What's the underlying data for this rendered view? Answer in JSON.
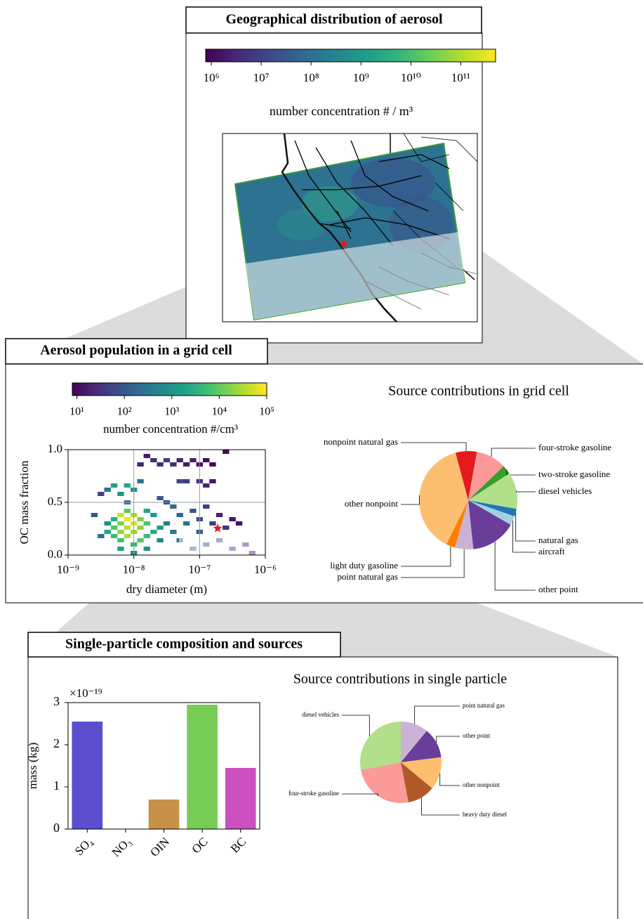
{
  "chart_data": [
    {
      "type": "map",
      "panel": "Geographical distribution of aerosol",
      "colorbar_label": "number concentration # / m³",
      "log": true,
      "clim": [
        770000,
        500000000000
      ],
      "cticks": [
        {
          "value": 1000000,
          "label": "10⁶"
        },
        {
          "value": 10000000,
          "label": "10⁷"
        },
        {
          "value": 100000000,
          "label": "10⁸"
        },
        {
          "value": 1000000000,
          "label": "10⁹"
        },
        {
          "value": 10000000000,
          "label": "10¹⁰"
        },
        {
          "value": 100000000000,
          "label": "10¹¹"
        }
      ]
    },
    {
      "type": "hist2d",
      "panel": "Aerosol population in a grid cell",
      "xlabel": "dry diameter (m)",
      "ylabel": "OC mass fraction",
      "xlog": true,
      "xlim": [
        1e-09,
        1e-06
      ],
      "xticks": [
        {
          "value": 1e-09,
          "label": "10⁻⁹"
        },
        {
          "value": 1e-08,
          "label": "10⁻⁸"
        },
        {
          "value": 1e-07,
          "label": "10⁻⁷"
        },
        {
          "value": 1e-06,
          "label": "10⁻⁶"
        }
      ],
      "ylim": [
        0,
        1
      ],
      "yticks": [
        {
          "value": 0,
          "label": "0.0"
        },
        {
          "value": 0.5,
          "label": "0.5"
        },
        {
          "value": 1,
          "label": "1.0"
        }
      ],
      "grid": true,
      "colorbar_label": "number concentration #/cm³",
      "clim": [
        8,
        100000
      ],
      "cticks": [
        {
          "value": 10,
          "label": "10¹"
        },
        {
          "value": 100,
          "label": "10²"
        },
        {
          "value": 1000,
          "label": "10³"
        },
        {
          "value": 10000,
          "label": "10⁴"
        },
        {
          "value": 100000,
          "label": "10⁵"
        }
      ],
      "x": [
        3.98e-09,
        3.98e-09,
        5.01e-09,
        5.01e-09,
        5.01e-09,
        6.31e-09,
        6.31e-09,
        6.31e-09,
        6.31e-09,
        7.94e-09,
        7.94e-09,
        7.94e-09,
        7.94e-09,
        1e-08,
        1e-08,
        1e-08,
        1e-08,
        1.26e-08,
        1.26e-08,
        1.26e-08,
        1.58e-08,
        1.58e-08,
        1.58e-08,
        2e-08,
        2e-08,
        2.51e-08,
        2.51e-08,
        3.16e-08,
        6.31e-09,
        1e-08,
        1.58e-08,
        3.98e-09,
        5.01e-09,
        6.31e-09,
        7.94e-09,
        1e-08,
        1.26e-08,
        7.94e-09,
        2.51e-09,
        3.16e-09,
        3.16e-09,
        1.26e-08,
        1.58e-08,
        2e-08,
        2.51e-08,
        3.16e-08,
        3.98e-08,
        5.01e-08,
        6.31e-08,
        7.94e-08,
        1e-07,
        1.26e-07,
        1.58e-07,
        2.51e-07,
        5.01e-08,
        6.31e-08,
        1e-07,
        1.26e-07,
        1.58e-07,
        3.98e-08,
        5.01e-08,
        6.31e-08,
        7.94e-08,
        1e-07,
        1e-07,
        1.26e-07,
        1.58e-07,
        2e-07,
        2.51e-07,
        3.16e-07,
        3.98e-07,
        1.26e-07,
        2e-07,
        3.16e-07,
        5.01e-07,
        6.31e-07,
        5.01e-08,
        7.94e-08,
        3.98e-08,
        2.51e-08,
        3.16e-08
      ],
      "y": [
        0.22,
        0.3,
        0.18,
        0.26,
        0.34,
        0.14,
        0.22,
        0.3,
        0.38,
        0.18,
        0.26,
        0.34,
        0.42,
        0.1,
        0.22,
        0.3,
        0.38,
        0.14,
        0.26,
        0.34,
        0.18,
        0.3,
        0.42,
        0.22,
        0.38,
        0.26,
        0.14,
        0.3,
        0.06,
        0.02,
        0.06,
        0.62,
        0.66,
        0.58,
        0.66,
        0.62,
        0.7,
        0.5,
        0.38,
        0.58,
        0.18,
        0.86,
        0.94,
        0.9,
        0.86,
        0.9,
        0.86,
        0.9,
        0.86,
        0.9,
        0.86,
        0.9,
        0.86,
        0.98,
        0.7,
        0.7,
        0.7,
        0.66,
        0.7,
        0.46,
        0.38,
        0.3,
        0.42,
        0.34,
        0.22,
        0.46,
        0.3,
        0.38,
        0.26,
        0.34,
        0.3,
        0.1,
        0.14,
        0.06,
        0.1,
        0.02,
        0.14,
        0.06,
        0.22,
        0.54,
        0.5
      ],
      "values": [
        2000,
        800,
        5000,
        8000,
        3000,
        6000,
        20000,
        15000,
        50000,
        30000,
        40000,
        80000,
        10000,
        4000,
        25000,
        60000,
        30000,
        8000,
        20000,
        15000,
        5000,
        7000,
        2000,
        3000,
        1000,
        1500,
        600,
        400,
        1500,
        800,
        1000,
        300,
        1500,
        1000,
        2000,
        800,
        300,
        500,
        100,
        50,
        200,
        20,
        15,
        30,
        25,
        40,
        30,
        20,
        15,
        20,
        12,
        10,
        10,
        10,
        60,
        40,
        30,
        20,
        15,
        200,
        150,
        300,
        100,
        80,
        150,
        40,
        50,
        20,
        30,
        15,
        12,
        100,
        60,
        40,
        20,
        12,
        200,
        150,
        400,
        100,
        80
      ]
    },
    {
      "type": "pie",
      "title": "Source contributions in grid cell",
      "startangle": -15,
      "categories": [
        "nonpoint natural gas",
        "four-stroke gasoline",
        "two-stroke gasoline",
        "diesel vehicles",
        "natural gas",
        "aircraft",
        "other point",
        "point natural gas",
        "light duty gasoline",
        "other nonpoint"
      ],
      "values": [
        7,
        10,
        3,
        12,
        2.5,
        3,
        15,
        6,
        3,
        38.5
      ],
      "colors": [
        "#e31a1c",
        "#fb9a99",
        "#33a02c",
        "#b2df8a",
        "#1f78b4",
        "#a6cee3",
        "#6a3d9a",
        "#cab2d6",
        "#ff7f00",
        "#fdbf6f"
      ]
    },
    {
      "type": "bar",
      "panel": "Single-particle composition and sources",
      "ylabel": "mass (kg)",
      "offset_label": "×10⁻¹⁹",
      "categories": [
        "SO₄",
        "NO₃",
        "OIN",
        "OC",
        "BC"
      ],
      "values": [
        2.55,
        0,
        0.7,
        2.95,
        1.45
      ],
      "colors": [
        "#5b4fcf",
        "#3a7fd0",
        "#c8914a",
        "#77cc55",
        "#cc4fbf"
      ],
      "ylim": [
        0,
        3
      ],
      "yticks": [
        0,
        1,
        2,
        3
      ]
    },
    {
      "type": "pie",
      "title": "Source contributions in single particle",
      "startangle": 0,
      "categories": [
        "point natural gas",
        "other point",
        "other nonpoint",
        "heavy duty diesel",
        "four-stroke gasoline",
        "diesel vehicles"
      ],
      "values": [
        11,
        12,
        13,
        11,
        25,
        28
      ],
      "colors": [
        "#cab2d6",
        "#6a3d9a",
        "#fdbf6f",
        "#b15928",
        "#fb9a99",
        "#b2df8a"
      ]
    }
  ]
}
